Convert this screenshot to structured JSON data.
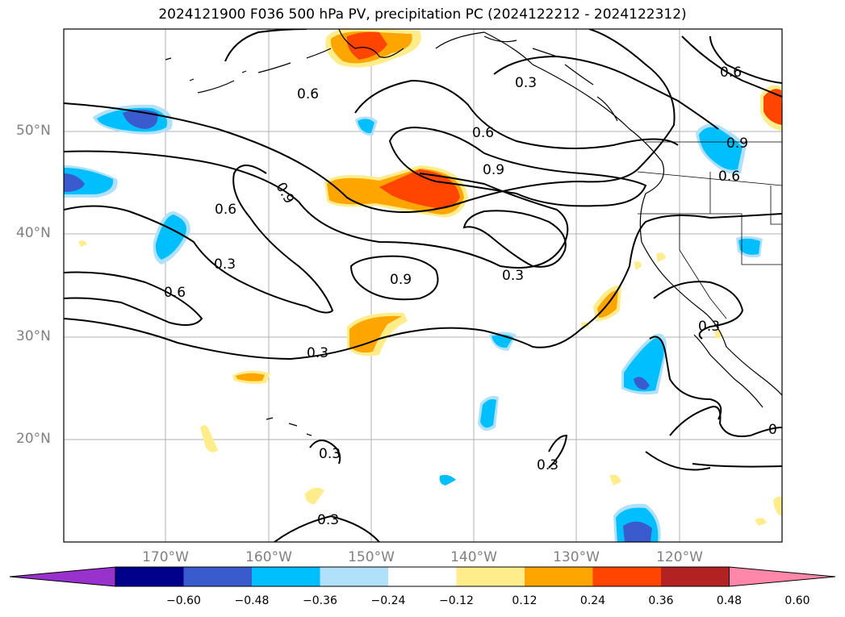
{
  "title": "2024121900 F036 500 hPa PV, precipitation PC (2024122212 - 2024122312)",
  "map": {
    "region": "North-East Pacific",
    "lat_labels": [
      "50°N",
      "40°N",
      "30°N",
      "20°N"
    ],
    "lon_labels": [
      "170°W",
      "160°W",
      "150°W",
      "140°W",
      "130°W",
      "120°W"
    ],
    "contour_labels": [
      "0.6",
      "0.3",
      "0.6",
      "0.9",
      "0.9",
      "0.6",
      "0.3",
      "0.9",
      "0.3",
      "0.6",
      "0.3",
      "0.3",
      "0.3",
      "0.3",
      "0.6",
      "0.9",
      "0.6",
      "0.3",
      "0"
    ],
    "grid": true
  },
  "colorbar": {
    "extend": "both",
    "colors": [
      "#9932cc",
      "#00008b",
      "#3a5bcd",
      "#00bfff",
      "#b0e0fa",
      "#ffffff",
      "#ffec8b",
      "#ffa500",
      "#ff4500",
      "#b22222",
      "#ff88aa"
    ],
    "ticks": [
      "−0.60",
      "−0.48",
      "−0.36",
      "−0.24",
      "−0.12",
      "0.12",
      "0.24",
      "0.36",
      "0.48",
      "0.60"
    ]
  }
}
